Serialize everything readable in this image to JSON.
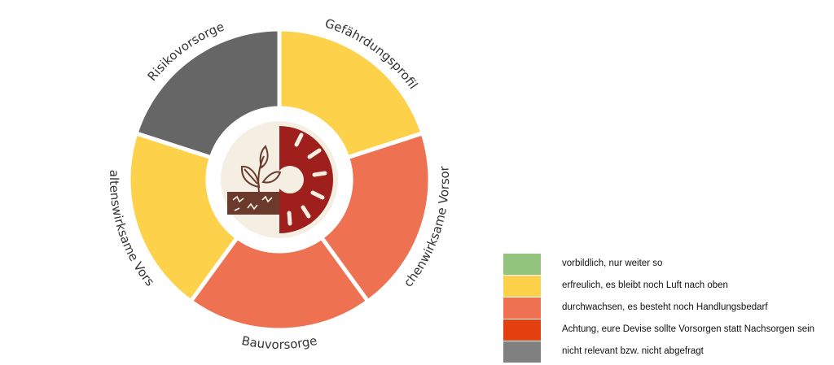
{
  "chart_data": {
    "type": "pie",
    "categories": [
      "Gefährdungsprofil",
      "Flächenwirksame Vorsorge",
      "Bauvorsorge",
      "Verhaltenswirksame Vorsorge",
      "Risikovorsorge"
    ],
    "values": [
      1,
      1,
      1,
      1,
      1
    ],
    "ratings": [
      "erfreulich, es bleibt noch Luft nach oben",
      "durchwachsen, es besteht noch Handlungsbedarf",
      "durchwachsen, es besteht noch Handlungsbedarf",
      "erfreulich, es bleibt noch Luft nach oben",
      "nicht relevant bzw. nicht abgefragt"
    ],
    "colors": [
      "#fdd24a",
      "#ee7152",
      "#ee7152",
      "#fdd24a",
      "#666666"
    ],
    "legend": {
      "placement": "bottom-right",
      "entries": [
        {
          "label": "vorbildlich, nur weiter so",
          "color": "#93c47d"
        },
        {
          "label": "erfreulich, es bleibt noch Luft nach oben",
          "color": "#fdd24a"
        },
        {
          "label": "durchwachsen, es besteht noch Handlungsbedarf",
          "color": "#ee7152"
        },
        {
          "label": "Achtung, eure Devise sollte Vorsorgen statt Nachsorgen sein",
          "color": "#e2410f"
        },
        {
          "label": "nicht relevant bzw. nicht abgefragt",
          "color": "#808080"
        }
      ]
    }
  },
  "center_logo": {
    "icon": "plant-and-sun-logo-icon",
    "colors": {
      "cream": "#f4efe2",
      "red": "#9e1f1b",
      "brown": "#6b3a2c"
    }
  }
}
